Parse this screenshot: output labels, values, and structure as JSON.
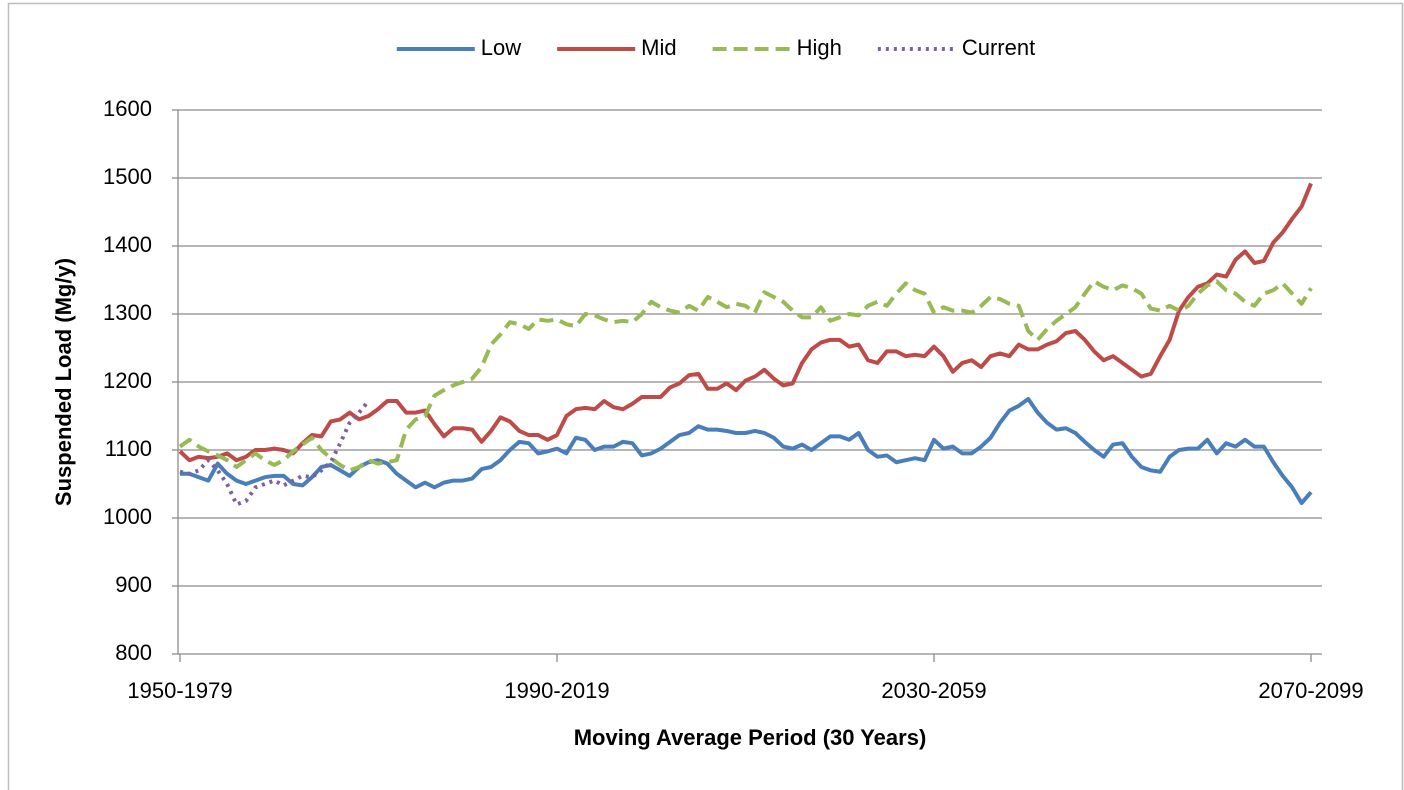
{
  "chart_data": {
    "type": "line",
    "xlabel": "Moving Average Period (30 Years)",
    "ylabel": "Suspended Load (Mg/y)",
    "legend": "top",
    "grid": true,
    "ylim": [
      800,
      1600
    ],
    "yticks": [
      800,
      900,
      1000,
      1100,
      1200,
      1300,
      1400,
      1500,
      1600
    ],
    "categories": [
      "1950-1979",
      null,
      null,
      null,
      null,
      null,
      null,
      null,
      null,
      null,
      null,
      null,
      null,
      null,
      null,
      null,
      null,
      null,
      null,
      null,
      null,
      null,
      null,
      null,
      null,
      null,
      null,
      null,
      null,
      null,
      null,
      null,
      null,
      null,
      null,
      null,
      null,
      null,
      null,
      null,
      "1990-2019",
      null,
      null,
      null,
      null,
      null,
      null,
      null,
      null,
      null,
      null,
      null,
      null,
      null,
      null,
      null,
      null,
      null,
      null,
      null,
      null,
      null,
      null,
      null,
      null,
      null,
      null,
      null,
      null,
      null,
      null,
      null,
      null,
      null,
      null,
      null,
      null,
      null,
      null,
      null,
      "2030-2059",
      null,
      null,
      null,
      null,
      null,
      null,
      null,
      null,
      null,
      null,
      null,
      null,
      null,
      null,
      null,
      null,
      null,
      null,
      null,
      null,
      null,
      null,
      null,
      null,
      null,
      null,
      null,
      null,
      null,
      null,
      null,
      null,
      null,
      null,
      null,
      null,
      null,
      null,
      null,
      "2070-2099"
    ],
    "series": [
      {
        "name": "Low",
        "color": "#4a7ebb",
        "dash": "solid",
        "values": [
          1065,
          1065,
          1060,
          1055,
          1080,
          1065,
          1055,
          1050,
          1055,
          1060,
          1062,
          1062,
          1050,
          1048,
          1060,
          1075,
          1078,
          1070,
          1062,
          1075,
          1082,
          1085,
          1080,
          1065,
          1055,
          1045,
          1052,
          1045,
          1052,
          1055,
          1055,
          1058,
          1072,
          1075,
          1085,
          1100,
          1112,
          1110,
          1095,
          1098,
          1102,
          1095,
          1118,
          1115,
          1100,
          1105,
          1105,
          1112,
          1110,
          1092,
          1095,
          1102,
          1112,
          1122,
          1125,
          1135,
          1130,
          1130,
          1128,
          1125,
          1125,
          1128,
          1125,
          1118,
          1105,
          1102,
          1108,
          1100,
          1110,
          1120,
          1120,
          1115,
          1125,
          1100,
          1090,
          1092,
          1082,
          1085,
          1088,
          1085,
          1115,
          1102,
          1105,
          1095,
          1095,
          1105,
          1118,
          1140,
          1158,
          1165,
          1175,
          1155,
          1140,
          1130,
          1132,
          1125,
          1112,
          1100,
          1090,
          1108,
          1110,
          1090,
          1075,
          1070,
          1068,
          1090,
          1100,
          1102,
          1102,
          1115,
          1095,
          1110,
          1105,
          1115,
          1105,
          1105,
          1082,
          1062,
          1045,
          1022,
          1038
        ]
      },
      {
        "name": "Mid",
        "color": "#be4b48",
        "dash": "solid",
        "values": [
          1098,
          1085,
          1090,
          1088,
          1090,
          1095,
          1085,
          1090,
          1100,
          1100,
          1102,
          1100,
          1095,
          1110,
          1122,
          1120,
          1142,
          1145,
          1155,
          1145,
          1150,
          1160,
          1172,
          1172,
          1155,
          1155,
          1158,
          1138,
          1120,
          1132,
          1132,
          1130,
          1112,
          1128,
          1148,
          1142,
          1128,
          1122,
          1122,
          1115,
          1122,
          1150,
          1160,
          1162,
          1160,
          1172,
          1163,
          1160,
          1168,
          1178,
          1178,
          1178,
          1192,
          1198,
          1210,
          1212,
          1190,
          1190,
          1198,
          1188,
          1202,
          1208,
          1218,
          1205,
          1195,
          1198,
          1228,
          1248,
          1258,
          1262,
          1262,
          1252,
          1255,
          1232,
          1228,
          1245,
          1245,
          1238,
          1240,
          1238,
          1252,
          1238,
          1215,
          1228,
          1232,
          1222,
          1238,
          1242,
          1238,
          1255,
          1248,
          1248,
          1255,
          1260,
          1272,
          1275,
          1262,
          1245,
          1232,
          1238,
          1228,
          1218,
          1208,
          1212,
          1238,
          1262,
          1305,
          1325,
          1340,
          1345,
          1358,
          1355,
          1380,
          1392,
          1375,
          1378,
          1405,
          1420,
          1440,
          1458,
          1492
        ]
      },
      {
        "name": "High",
        "color": "#98b954",
        "dash": "dashed",
        "values": [
          1105,
          1115,
          1105,
          1098,
          1092,
          1085,
          1075,
          1085,
          1095,
          1085,
          1078,
          1085,
          1098,
          1108,
          1118,
          1100,
          1088,
          1078,
          1070,
          1075,
          1085,
          1080,
          1082,
          1085,
          1130,
          1145,
          1150,
          1180,
          1188,
          1195,
          1200,
          1205,
          1222,
          1255,
          1270,
          1288,
          1285,
          1278,
          1292,
          1290,
          1292,
          1285,
          1282,
          1300,
          1298,
          1292,
          1288,
          1290,
          1288,
          1300,
          1318,
          1310,
          1305,
          1302,
          1312,
          1305,
          1325,
          1318,
          1310,
          1315,
          1312,
          1302,
          1332,
          1325,
          1318,
          1305,
          1295,
          1295,
          1310,
          1290,
          1295,
          1300,
          1298,
          1312,
          1318,
          1312,
          1330,
          1345,
          1335,
          1330,
          1302,
          1310,
          1305,
          1305,
          1302,
          1312,
          1325,
          1322,
          1315,
          1312,
          1275,
          1262,
          1278,
          1290,
          1300,
          1310,
          1330,
          1348,
          1340,
          1335,
          1342,
          1338,
          1330,
          1308,
          1305,
          1312,
          1305,
          1312,
          1330,
          1342,
          1348,
          1335,
          1330,
          1318,
          1312,
          1330,
          1335,
          1345,
          1330,
          1315,
          1338
        ]
      },
      {
        "name": "Current",
        "color": "#7d60a0",
        "dash": "dotted",
        "values": [
          1068,
          1065,
          1070,
          1085,
          1070,
          1050,
          1020,
          1025,
          1045,
          1050,
          1055,
          1048,
          1055,
          1062,
          1060,
          1070,
          1082,
          1110,
          1140,
          1155,
          1172,
          null,
          null,
          null,
          null,
          null,
          null,
          null,
          null,
          null,
          null,
          null,
          null,
          null,
          null,
          null,
          null,
          null,
          null,
          null,
          null,
          null,
          null,
          null,
          null,
          null,
          null,
          null,
          null,
          null,
          null,
          null,
          null,
          null,
          null,
          null,
          null,
          null,
          null,
          null,
          null,
          null,
          null,
          null,
          null,
          null,
          null,
          null,
          null,
          null,
          null,
          null,
          null,
          null,
          null,
          null,
          null,
          null,
          null,
          null,
          null,
          null,
          null,
          null,
          null,
          null,
          null,
          null,
          null,
          null,
          null,
          null,
          null,
          null,
          null,
          null,
          null,
          null,
          null,
          null,
          null,
          null,
          null,
          null,
          null,
          null,
          null,
          null,
          null,
          null,
          null,
          null,
          null,
          null,
          null,
          null,
          null,
          null,
          null,
          null,
          null
        ]
      }
    ]
  }
}
